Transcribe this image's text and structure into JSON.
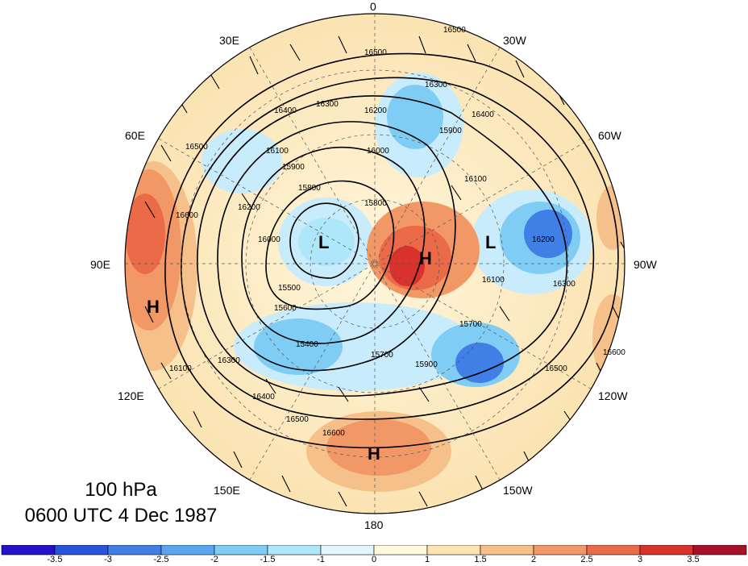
{
  "map": {
    "projection": "north polar stereographic",
    "lon_labels": [
      {
        "text": "0",
        "lon": 0
      },
      {
        "text": "30W",
        "lon": -30
      },
      {
        "text": "60W",
        "lon": -60
      },
      {
        "text": "90W",
        "lon": -90
      },
      {
        "text": "120W",
        "lon": -120
      },
      {
        "text": "150W",
        "lon": -150
      },
      {
        "text": "180",
        "lon": 180
      },
      {
        "text": "150E",
        "lon": 150
      },
      {
        "text": "120E",
        "lon": 120
      },
      {
        "text": "90E",
        "lon": 90
      },
      {
        "text": "60E",
        "lon": 60
      },
      {
        "text": "30E",
        "lon": 30
      }
    ],
    "pressure_centers": [
      {
        "label": "L",
        "region": "Siberian Arctic / Taymyr"
      },
      {
        "label": "L",
        "region": "Hudson Bay / Canadian Arctic"
      },
      {
        "label": "H",
        "region": "Alaska / Bering"
      },
      {
        "label": "H",
        "region": "Central Asia (90E)"
      },
      {
        "label": "H",
        "region": "North Pacific (180)"
      }
    ],
    "contour_labels": [
      "16500",
      "16500",
      "16500",
      "16300",
      "16300",
      "16400",
      "16200",
      "16100",
      "16000",
      "15900",
      "15800",
      "15800",
      "15700",
      "15600",
      "15500",
      "15400",
      "16600",
      "16500",
      "16600",
      "16200",
      "16100",
      "16000",
      "15900",
      "15700",
      "15900",
      "16100",
      "16300",
      "16500",
      "16600",
      "16400",
      "16400",
      "16300",
      "16200",
      "16100"
    ],
    "colors": {
      "neg_strong": "#1f3fd0",
      "neg": "#4d8ee8",
      "neg_light": "#c8ecfb",
      "pos_light": "#fbe3b2",
      "pos": "#f07850",
      "pos_strong": "#d9312c",
      "contour": "#000000"
    }
  },
  "caption": {
    "level": "100 hPa",
    "time": "0600 UTC 4 Dec 1987"
  },
  "colorbar": {
    "ticks": [
      "-3.5",
      "-3",
      "-2.5",
      "-2",
      "-1.5",
      "-1",
      "0",
      "1",
      "1.5",
      "2",
      "2.5",
      "3",
      "3.5"
    ],
    "colors": [
      "#2410c8",
      "#2a52dc",
      "#3f7fe6",
      "#5aa5ee",
      "#7fcdf5",
      "#aee6fa",
      "#e1f6fd",
      "#fff8dd",
      "#fbe3b2",
      "#f5c08a",
      "#f29866",
      "#eb6a48",
      "#d9312c",
      "#a8102a"
    ]
  }
}
